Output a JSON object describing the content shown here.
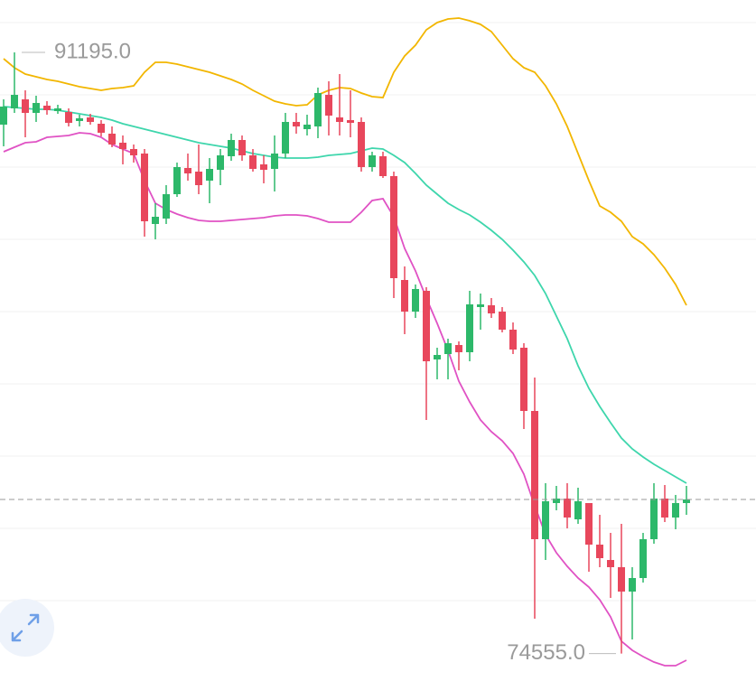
{
  "chart_data": {
    "type": "candlestick",
    "high_label": "91195.0",
    "low_label": "74555.0",
    "up_color": "#2db86a",
    "down_color": "#e8475c",
    "last_price_line": true,
    "open": [
      89195,
      89645,
      89895,
      89520,
      89720,
      89570,
      89545,
      89295,
      89395,
      89220,
      88945,
      88695,
      88520,
      88395,
      86445,
      86595,
      87270,
      87995,
      87895,
      87645,
      87945,
      88320,
      88770,
      88345,
      88095,
      87970,
      88395,
      89270,
      89070,
      89145,
      90020,
      89395,
      89320,
      89270,
      88020,
      88320,
      87770,
      84895,
      84020,
      84595,
      82695,
      82845,
      83095,
      82895,
      84145,
      84195,
      84020,
      83520,
      83020,
      81270,
      77720,
      78720,
      78845,
      78270,
      78720,
      77570,
      77145,
      76945,
      76270,
      76645,
      77720,
      78845,
      78320,
      78720
    ],
    "high": [
      89895,
      91195,
      90145,
      89995,
      89845,
      89745,
      89645,
      89470,
      89495,
      89320,
      89145,
      88895,
      88645,
      88520,
      87020,
      87520,
      88145,
      88395,
      88645,
      88270,
      88520,
      88945,
      88895,
      88520,
      88345,
      88895,
      89520,
      89520,
      89470,
      90220,
      90395,
      90595,
      90145,
      89395,
      88445,
      88445,
      87895,
      85270,
      84770,
      84695,
      83020,
      83270,
      83195,
      84595,
      84520,
      84395,
      84145,
      83720,
      83145,
      82195,
      79270,
      79195,
      79270,
      79145,
      78720,
      78395,
      77895,
      78145,
      76945,
      77895,
      79270,
      79220,
      78945,
      79195
    ],
    "low": [
      88595,
      89520,
      88845,
      89270,
      89470,
      89495,
      89145,
      89145,
      89195,
      88870,
      88570,
      88095,
      88145,
      86095,
      86020,
      86445,
      87195,
      87645,
      87270,
      87020,
      87520,
      88195,
      88195,
      87895,
      87570,
      87345,
      88270,
      88945,
      88895,
      88820,
      88895,
      88895,
      88845,
      87895,
      87895,
      87720,
      84395,
      83395,
      83845,
      81020,
      82145,
      82145,
      82395,
      82645,
      83520,
      83845,
      83445,
      82845,
      80770,
      75520,
      77145,
      78520,
      78020,
      78145,
      76820,
      76945,
      76095,
      74555,
      74945,
      76520,
      77595,
      78195,
      77995,
      78395
    ],
    "close": [
      89695,
      90020,
      89520,
      89795,
      89595,
      89645,
      89245,
      89370,
      89270,
      88970,
      88645,
      88520,
      88345,
      86520,
      86645,
      87270,
      88020,
      87845,
      87520,
      87970,
      88345,
      88770,
      88345,
      87970,
      87945,
      88395,
      89270,
      89145,
      89195,
      90070,
      89445,
      89270,
      89245,
      88020,
      88345,
      87770,
      84945,
      84020,
      84645,
      82645,
      82820,
      83145,
      82895,
      84220,
      84220,
      83970,
      83520,
      82970,
      81270,
      77720,
      78770,
      78845,
      78320,
      78770,
      77570,
      77195,
      76945,
      76270,
      76645,
      77720,
      78845,
      78320,
      78720,
      78820
    ],
    "overlays": [
      {
        "color": "#f2b600",
        "values": [
          91020,
          90770,
          90595,
          90520,
          90445,
          90395,
          90320,
          90245,
          90195,
          90145,
          90195,
          90220,
          90270,
          90645,
          90920,
          90920,
          90870,
          90795,
          90720,
          90645,
          90545,
          90445,
          90320,
          90145,
          89995,
          89845,
          89770,
          89720,
          89745,
          90020,
          90145,
          90220,
          90195,
          90070,
          89970,
          89945,
          90645,
          91095,
          91395,
          91820,
          92020,
          92120,
          92145,
          92070,
          91970,
          91770,
          91395,
          91020,
          90770,
          90645,
          90270,
          89770,
          89145,
          88395,
          87645,
          86945,
          86770,
          86520,
          86095,
          85895,
          85595,
          85220,
          84770,
          84195
        ]
      },
      {
        "color": "#3ed6ac",
        "values": [
          89695,
          89670,
          89645,
          89620,
          89620,
          89595,
          89545,
          89495,
          89445,
          89395,
          89320,
          89220,
          89145,
          89070,
          88995,
          88920,
          88845,
          88770,
          88695,
          88645,
          88595,
          88545,
          88470,
          88395,
          88345,
          88295,
          88270,
          88270,
          88270,
          88295,
          88345,
          88370,
          88395,
          88470,
          88545,
          88520,
          88345,
          88145,
          87845,
          87520,
          87270,
          87020,
          86845,
          86695,
          86495,
          86270,
          86020,
          85720,
          85395,
          85020,
          84520,
          83895,
          83270,
          82520,
          81895,
          81395,
          80945,
          80520,
          80220,
          79995,
          79795,
          79620,
          79445,
          79270
        ]
      },
      {
        "color": "#e052c4",
        "values": [
          88445,
          88570,
          88695,
          88720,
          88845,
          88870,
          88895,
          88970,
          88945,
          88845,
          88645,
          88520,
          88395,
          87645,
          87020,
          86845,
          86720,
          86620,
          86545,
          86520,
          86520,
          86545,
          86570,
          86595,
          86620,
          86670,
          86695,
          86695,
          86670,
          86595,
          86495,
          86495,
          86495,
          86770,
          87095,
          87145,
          86645,
          85770,
          85145,
          84395,
          83695,
          82945,
          82095,
          81520,
          81020,
          80695,
          80445,
          80095,
          79520,
          78645,
          77845,
          77345,
          76970,
          76645,
          76395,
          76045,
          75570,
          74895,
          74645,
          74470,
          74320,
          74220,
          74220,
          74370
        ]
      }
    ]
  }
}
